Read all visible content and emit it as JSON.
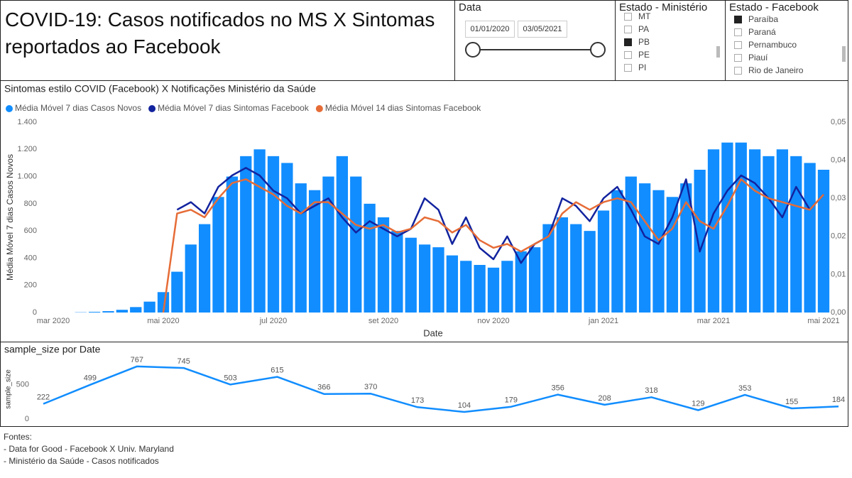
{
  "header": {
    "title": "COVID-19: Casos notificados no MS X Sintomas reportados ao Facebook"
  },
  "slicers": {
    "date": {
      "title": "Data",
      "start": "01/01/2020",
      "end": "03/05/2021"
    },
    "ministerio": {
      "title": "Estado - Ministério",
      "items": [
        {
          "label": "MT",
          "checked": false
        },
        {
          "label": "PA",
          "checked": false
        },
        {
          "label": "PB",
          "checked": true
        },
        {
          "label": "PE",
          "checked": false
        },
        {
          "label": "PI",
          "checked": false
        }
      ]
    },
    "facebook": {
      "title": "Estado - Facebook",
      "items": [
        {
          "label": "Paraíba",
          "checked": true
        },
        {
          "label": "Paraná",
          "checked": false
        },
        {
          "label": "Pernambuco",
          "checked": false
        },
        {
          "label": "Piauí",
          "checked": false
        },
        {
          "label": "Rio de Janeiro",
          "checked": false
        }
      ]
    }
  },
  "chart_data": [
    {
      "type": "combo",
      "title": "Sintomas estilo COVID (Facebook) X Notificações Ministério da Saúde",
      "xlabel": "Date",
      "ylabel": "Média Móvel 7 dias Casos Novos",
      "legend": "top-left",
      "grid": false,
      "categories": [
        "mar 2020",
        null,
        null,
        null,
        null,
        null,
        null,
        null,
        "mai 2020",
        null,
        null,
        null,
        null,
        null,
        null,
        null,
        "jul 2020",
        null,
        null,
        null,
        null,
        null,
        null,
        null,
        "set 2020",
        null,
        null,
        null,
        null,
        null,
        null,
        null,
        "nov 2020",
        null,
        null,
        null,
        null,
        null,
        null,
        null,
        "jan 2021",
        null,
        null,
        null,
        null,
        null,
        null,
        null,
        "mar 2021",
        null,
        null,
        null,
        null,
        null,
        null,
        null,
        "mai 2021"
      ],
      "ylim": [
        0,
        1400
      ],
      "yticks": [
        0,
        200,
        400,
        600,
        800,
        {
          "value": 1000,
          "label": "1.000"
        },
        {
          "value": 1200,
          "label": "1.200"
        },
        {
          "value": 1400,
          "label": "1.400"
        }
      ],
      "y2lim": [
        0,
        0.05
      ],
      "y2ticks": [
        {
          "value": 0,
          "label": "0,00"
        },
        {
          "value": 0.01,
          "label": "0,01"
        },
        {
          "value": 0.02,
          "label": "0,02"
        },
        {
          "value": 0.03,
          "label": "0,03"
        },
        {
          "value": 0.04,
          "label": "0,04"
        },
        {
          "value": 0.05,
          "label": "0,05"
        }
      ],
      "series": [
        {
          "name": "Média Móvel 7 dias Casos Novos",
          "color": "#118DFF",
          "type": "bar",
          "values": [
            0,
            0,
            2,
            5,
            10,
            20,
            40,
            80,
            150,
            300,
            500,
            650,
            850,
            1000,
            1150,
            1200,
            1150,
            1100,
            950,
            900,
            1000,
            1150,
            1000,
            800,
            700,
            600,
            550,
            500,
            480,
            420,
            380,
            350,
            330,
            380,
            450,
            480,
            650,
            700,
            650,
            600,
            750,
            900,
            1000,
            950,
            900,
            850,
            950,
            1050,
            1200,
            1250,
            1250,
            1200,
            1150,
            1200,
            1150,
            1100,
            1050
          ]
        },
        {
          "name": "Média Móvel 7 dias Sintomas Facebook",
          "color": "#12239E",
          "type": "line",
          "axis": "y2",
          "values": [
            null,
            null,
            null,
            null,
            null,
            null,
            null,
            null,
            null,
            0.027,
            0.029,
            0.026,
            0.033,
            0.036,
            0.038,
            0.036,
            0.032,
            0.03,
            0.026,
            0.028,
            0.03,
            0.025,
            0.021,
            0.024,
            0.022,
            0.02,
            0.022,
            0.03,
            0.027,
            0.018,
            0.025,
            0.017,
            0.014,
            0.02,
            0.013,
            0.018,
            0.02,
            0.03,
            0.028,
            0.024,
            0.03,
            0.033,
            0.027,
            0.02,
            0.018,
            0.025,
            0.035,
            0.016,
            0.026,
            0.032,
            0.036,
            0.034,
            0.03,
            0.025,
            0.033,
            0.027,
            0.031
          ]
        },
        {
          "name": "Média Móvel 14 dias Sintomas Facebook",
          "color": "#E66C37",
          "type": "line",
          "axis": "y2",
          "values": [
            null,
            null,
            null,
            null,
            null,
            null,
            null,
            null,
            0,
            0.026,
            0.027,
            0.025,
            0.03,
            0.034,
            0.035,
            0.033,
            0.031,
            0.028,
            0.026,
            0.029,
            0.029,
            0.026,
            0.023,
            0.022,
            0.023,
            0.021,
            0.022,
            0.025,
            0.024,
            0.021,
            0.023,
            0.019,
            0.017,
            0.018,
            0.016,
            0.018,
            0.02,
            0.026,
            0.029,
            0.027,
            0.029,
            0.03,
            0.029,
            0.024,
            0.019,
            0.022,
            0.029,
            0.024,
            0.022,
            0.028,
            0.035,
            0.032,
            0.03,
            0.029,
            0.028,
            0.027,
            0.031
          ]
        }
      ]
    },
    {
      "type": "line",
      "title": "sample_size por Date",
      "ylabel": "sample_size",
      "color": "#118DFF",
      "categories": [
        null,
        null,
        null,
        null,
        null,
        null,
        null,
        null,
        null,
        null,
        null,
        null,
        null,
        null,
        null,
        null,
        null,
        null
      ],
      "values": [
        222,
        499,
        767,
        745,
        503,
        615,
        366,
        370,
        173,
        104,
        179,
        356,
        208,
        318,
        129,
        353,
        155,
        184
      ],
      "ylim": [
        0,
        870
      ],
      "yticks": [
        0,
        500
      ],
      "grid": false
    }
  ],
  "footer": {
    "lines": [
      "Fontes:",
      "- Data for Good - Facebook X Univ. Maryland",
      "- Ministério da Saúde - Casos notificados"
    ]
  }
}
